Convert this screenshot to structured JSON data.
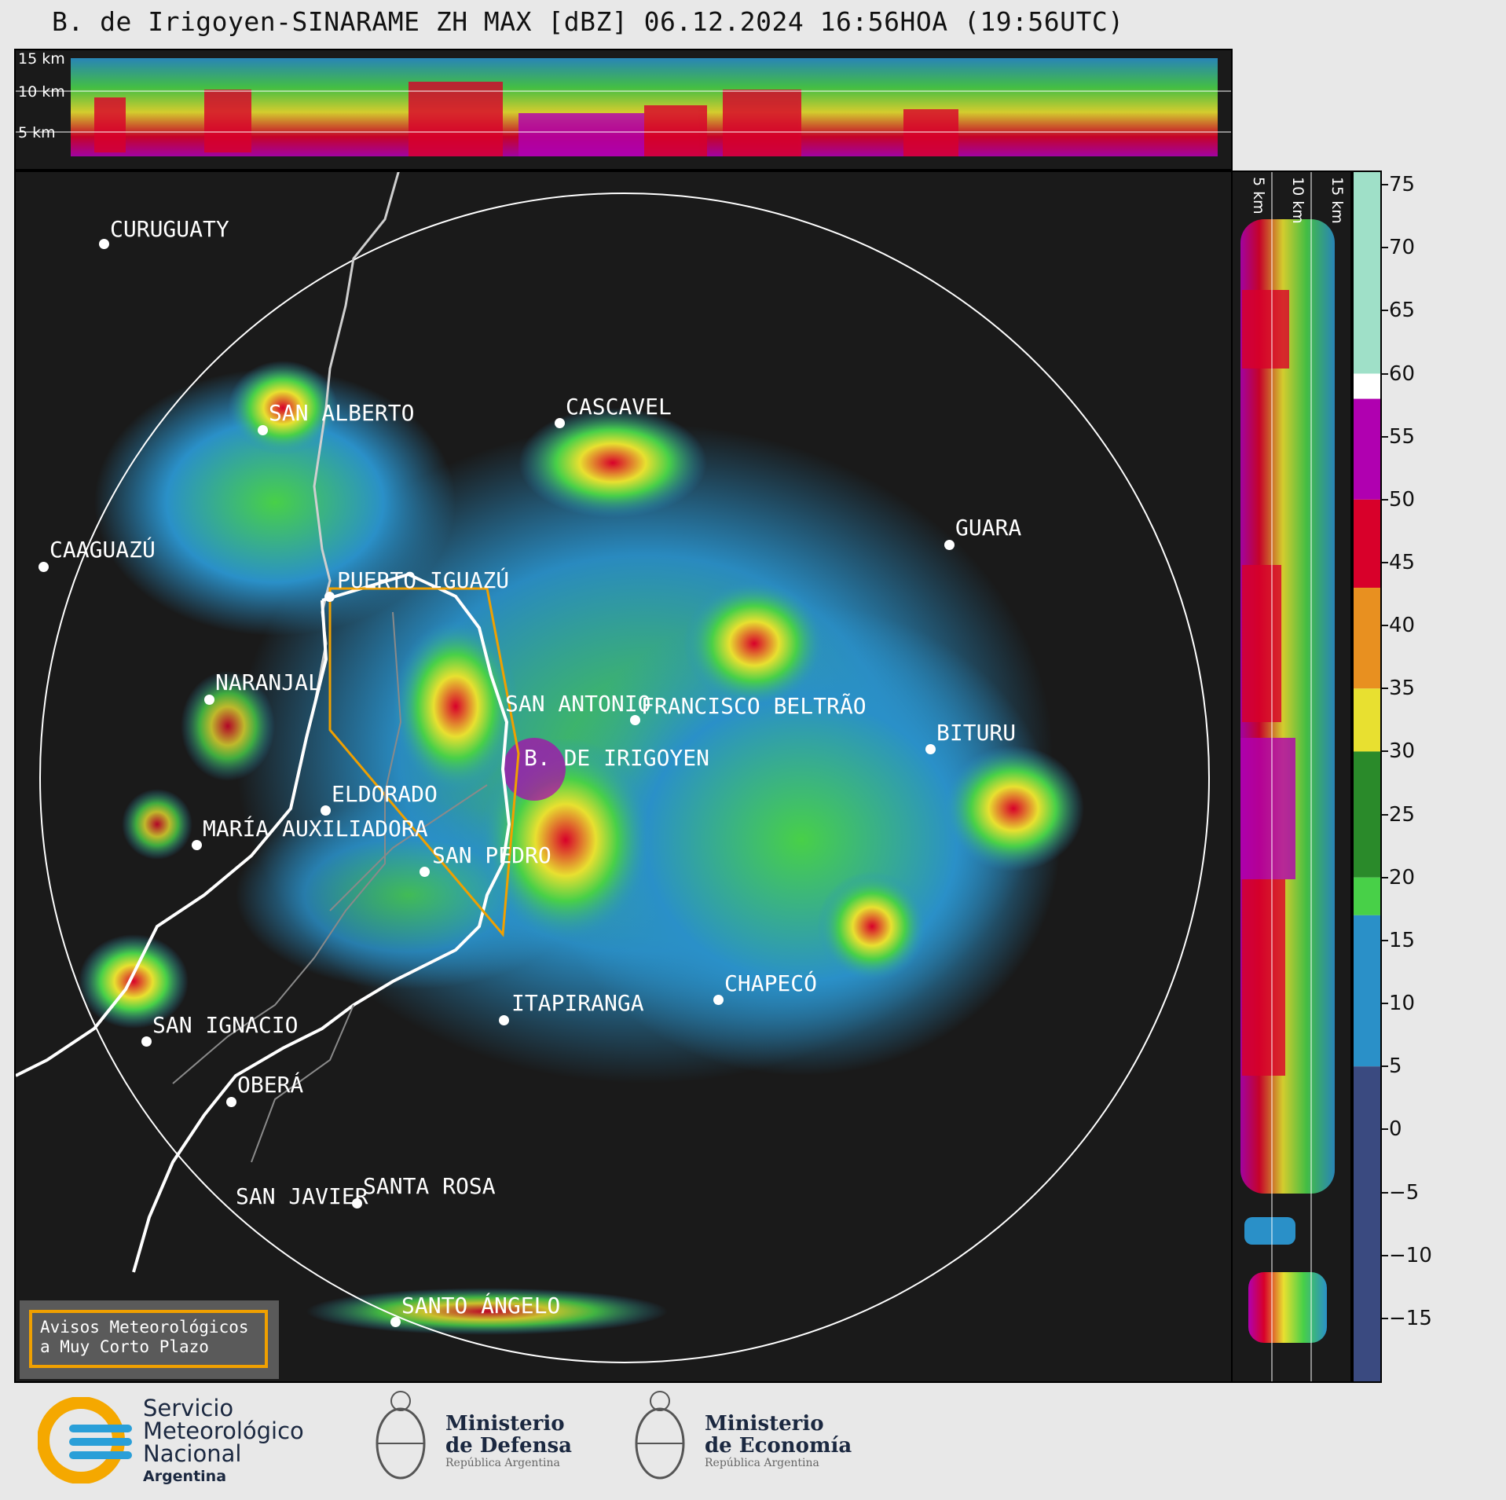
{
  "title": "B. de Irigoyen-SINARAME ZH MAX [dBZ] 06.12.2024 16:56HOA (19:56UTC)",
  "units": "dBZ",
  "top_panel": {
    "height_labels": [
      "15 km",
      "10 km",
      "5 km"
    ]
  },
  "side_panel": {
    "height_labels": [
      "5 km",
      "10 km",
      "15 km"
    ]
  },
  "colorbar": {
    "ticks": [
      "75",
      "70",
      "65",
      "60",
      "55",
      "50",
      "45",
      "40",
      "35",
      "30",
      "25",
      "20",
      "15",
      "10",
      "5",
      "0",
      "−5",
      "−10",
      "−15"
    ],
    "min": -20,
    "max": 76,
    "stops": [
      {
        "from": 60,
        "to": 76,
        "color": "#9fe0c8"
      },
      {
        "from": 58,
        "to": 60,
        "color": "#ffffff"
      },
      {
        "from": 50,
        "to": 58,
        "color": "#b000b0"
      },
      {
        "from": 43,
        "to": 50,
        "color": "#d8002a"
      },
      {
        "from": 35,
        "to": 43,
        "color": "#e89020"
      },
      {
        "from": 30,
        "to": 35,
        "color": "#e8e030"
      },
      {
        "from": 20,
        "to": 30,
        "color": "#2a8a2a"
      },
      {
        "from": 17,
        "to": 20,
        "color": "#48d048"
      },
      {
        "from": 5,
        "to": 17,
        "color": "#2a90c8"
      },
      {
        "from": -20,
        "to": 5,
        "color": "#3a4a80"
      }
    ]
  },
  "cities": [
    {
      "name": "CURUGUATY"
    },
    {
      "name": "SAN ALBERTO"
    },
    {
      "name": "CASCAVEL"
    },
    {
      "name": "CAAGUAZÚ"
    },
    {
      "name": "GUARA"
    },
    {
      "name": "PUERTO IGUAZÚ"
    },
    {
      "name": "NARANJAL"
    },
    {
      "name": "SAN ANTONIO"
    },
    {
      "name": "FRANCISCO BELTRÃO"
    },
    {
      "name": "B. DE IRIGOYEN"
    },
    {
      "name": "BITURU"
    },
    {
      "name": "ELDORADO"
    },
    {
      "name": "MARÍA AUXILIADORA"
    },
    {
      "name": "SAN PEDRO"
    },
    {
      "name": "CHAPECÓ"
    },
    {
      "name": "ITAPIRANGA"
    },
    {
      "name": "SAN IGNACIO"
    },
    {
      "name": "OBERÁ"
    },
    {
      "name": "SAN JAVIER"
    },
    {
      "name": "SANTA ROSA"
    },
    {
      "name": "SANTO ÁNGELO"
    }
  ],
  "notice": {
    "line1": "Avisos Meteorológicos",
    "line2": "a Muy Corto Plazo"
  },
  "logos": {
    "smn": {
      "line1": "Servicio",
      "line2": "Meteorológico",
      "line3": "Nacional",
      "line4": "Argentina"
    },
    "defensa": {
      "line1": "Ministerio",
      "line2": "de Defensa",
      "line3": "República Argentina"
    },
    "economia": {
      "line1": "Ministerio",
      "line2": "de Economía",
      "line3": "República Argentina"
    }
  },
  "colors": {
    "background": "#1a1a1a",
    "range_ring": "#ffffff",
    "warning_border": "#f0a000"
  }
}
